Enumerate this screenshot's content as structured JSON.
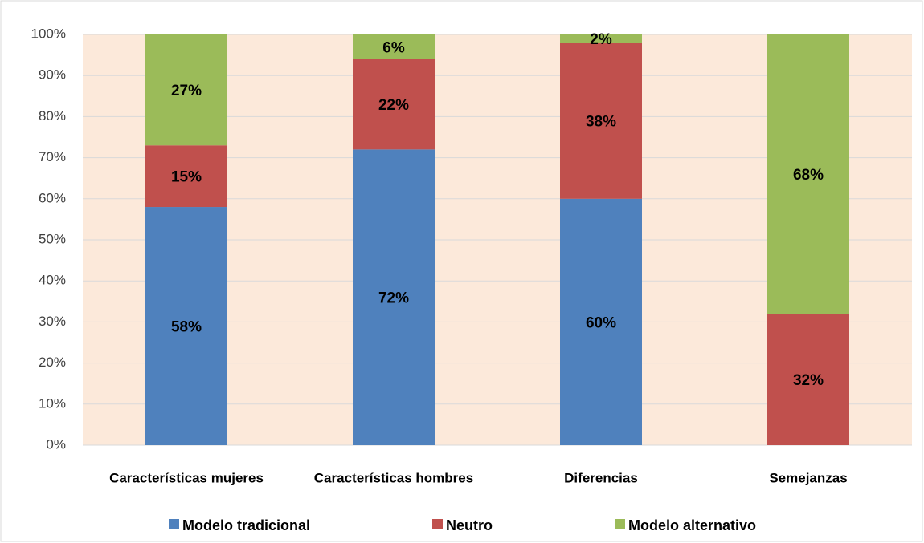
{
  "chart_data": {
    "type": "stacked_bar",
    "categories": [
      "Características mujeres",
      "Características hombres",
      "Diferencias",
      "Semejanzas"
    ],
    "series": [
      {
        "name": "Modelo tradicional",
        "color": "#4f81bd",
        "values": [
          58,
          72,
          60,
          0
        ],
        "value_labels": [
          "58%",
          "72%",
          "60%",
          null
        ]
      },
      {
        "name": "Neutro",
        "color": "#c0504d",
        "values": [
          15,
          22,
          38,
          32
        ],
        "value_labels": [
          "15%",
          "22%",
          "38%",
          "32%"
        ]
      },
      {
        "name": "Modelo alternativo",
        "color": "#9bbb59",
        "values": [
          27,
          6,
          2,
          68
        ],
        "value_labels": [
          "27%",
          "6%",
          "2%",
          "68%"
        ]
      }
    ],
    "ylim": [
      0,
      100
    ],
    "yticks": [
      {
        "value": 0,
        "label": "0%"
      },
      {
        "value": 10,
        "label": "10%"
      },
      {
        "value": 20,
        "label": "20%"
      },
      {
        "value": 30,
        "label": "30%"
      },
      {
        "value": 40,
        "label": "40%"
      },
      {
        "value": 50,
        "label": "50%"
      },
      {
        "value": 60,
        "label": "60%"
      },
      {
        "value": 70,
        "label": "70%"
      },
      {
        "value": 80,
        "label": "80%"
      },
      {
        "value": 90,
        "label": "90%"
      },
      {
        "value": 100,
        "label": "100%"
      }
    ],
    "grid": true,
    "legend": "bottom"
  }
}
